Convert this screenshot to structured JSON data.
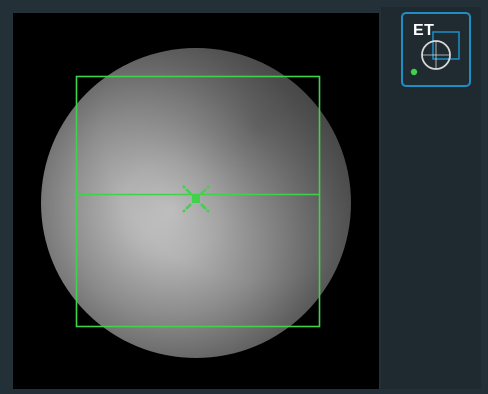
{
  "viewer": {
    "image_type": "grayscale circular retinal scan",
    "overlay_color": "#3fd24a"
  },
  "toolbar": {
    "et_label": "ET",
    "et_border_color": "#1d8fc4"
  },
  "icons": {
    "target_icon": "crosshair-target-icon",
    "et_icon": "eye-tracking-icon"
  }
}
